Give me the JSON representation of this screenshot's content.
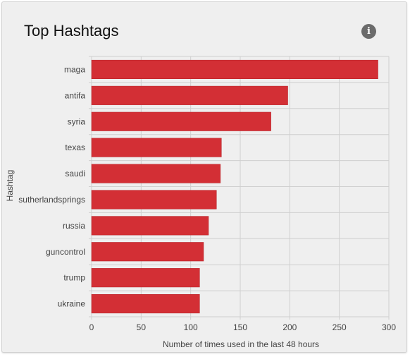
{
  "card": {
    "title": "Top Hashtags",
    "info_icon": "info-circle-icon",
    "info_glyph": "i"
  },
  "chart_data": {
    "type": "bar",
    "orientation": "horizontal",
    "categories": [
      "maga",
      "antifa",
      "syria",
      "texas",
      "saudi",
      "sutherlandsprings",
      "russia",
      "guncontrol",
      "trump",
      "ukraine"
    ],
    "values": [
      289,
      198,
      181,
      131,
      130,
      126,
      118,
      113,
      109,
      109
    ],
    "xlabel": "Number of times used in the last 48 hours",
    "ylabel": "Hashtag",
    "xlim": [
      0,
      300
    ],
    "xticks": [
      0,
      50,
      100,
      150,
      200,
      250,
      300
    ],
    "grid": true,
    "bar_color": "#d32f35",
    "bar_stroke": "#b51f25"
  }
}
